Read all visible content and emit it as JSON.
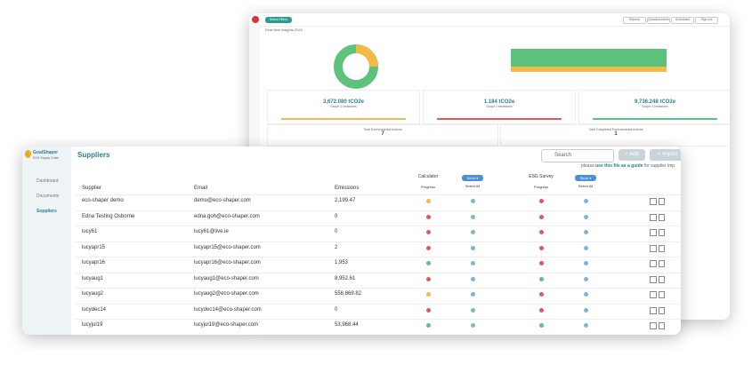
{
  "back": {
    "button": "Select Filters",
    "subtitle": "Real-time insights 2024",
    "top_buttons": [
      "Reports",
      "Questionnaires",
      "Scheduled",
      "Sign out"
    ],
    "cards": [
      {
        "value": "3,672.080 tCO2e",
        "label": "Scope 1 emissions",
        "color": "#f5b94a"
      },
      {
        "value": "1.184 tCO2e",
        "label": "Scope 2 emissions",
        "color": "#e05a5a"
      },
      {
        "value": "9,736.248 tCO2e",
        "label": "Scope 3 emissions",
        "color": "#5cc27c"
      }
    ],
    "actions": [
      {
        "label": "Total Environmental Actions",
        "value": "7"
      },
      {
        "label": "Total Completed Environmental Actions",
        "value": "1"
      }
    ]
  },
  "front": {
    "brand": "GoalShaper",
    "brand_sub": "ESG Supply Chain",
    "nav": [
      "Dashboard",
      "Documents",
      "Suppliers"
    ],
    "title": "Suppliers",
    "search": "Search",
    "add": "+ Add",
    "import": "+ Import",
    "hint_pre": "please",
    "hint_link": "use this file as a guide",
    "hint_post": "for supplier imp",
    "columns": {
      "supplier": "Supplier",
      "email": "Email",
      "emissions": "Emissions",
      "calculator": "Calculator",
      "survey": "ESG Survey",
      "progress": "Progress",
      "send": "Send ▾",
      "select_all": "Select All"
    },
    "rows": [
      {
        "supplier": "eco-shaper demo",
        "email": "demo@eco-shaper.com",
        "emissions": "2,199.47",
        "calc": "#f5b94a",
        "survey": "#e05a5a"
      },
      {
        "supplier": "Edna Testing Osborne",
        "email": "edna.goh@eco-shaper.com",
        "emissions": "0",
        "calc": "#e05a5a",
        "survey": "#e05a5a"
      },
      {
        "supplier": "lucy61",
        "email": "lucy61@live.ie",
        "emissions": "0",
        "calc": "#e05a5a",
        "survey": "#e05a5a"
      },
      {
        "supplier": "lucyapr15",
        "email": "lucyapr15@eco-shaper.com",
        "emissions": "2",
        "calc": "#e05a5a",
        "survey": "#e05a5a"
      },
      {
        "supplier": "lucyapr16",
        "email": "lucyapr16@eco-shaper.com",
        "emissions": "1,953",
        "calc": "#5cc27c",
        "survey": "#e05a5a"
      },
      {
        "supplier": "lucyaug1",
        "email": "lucyaug1@eco-shaper.com",
        "emissions": "8,952.61",
        "calc": "#e05a5a",
        "survey": "#5cc27c"
      },
      {
        "supplier": "lucyaug2",
        "email": "lucyaug2@eco-shaper.com",
        "emissions": "558,869.82",
        "calc": "#f5b94a",
        "survey": "#e05a5a"
      },
      {
        "supplier": "lucydec14",
        "email": "lucydec14@eco-shaper.com",
        "emissions": "0",
        "calc": "#e05a5a",
        "survey": "#e05a5a"
      },
      {
        "supplier": "lucyjul19",
        "email": "lucyjul19@eco-shaper.com",
        "emissions": "53,968.44",
        "calc": "#5cc27c",
        "survey": "#5cc27c"
      }
    ]
  }
}
